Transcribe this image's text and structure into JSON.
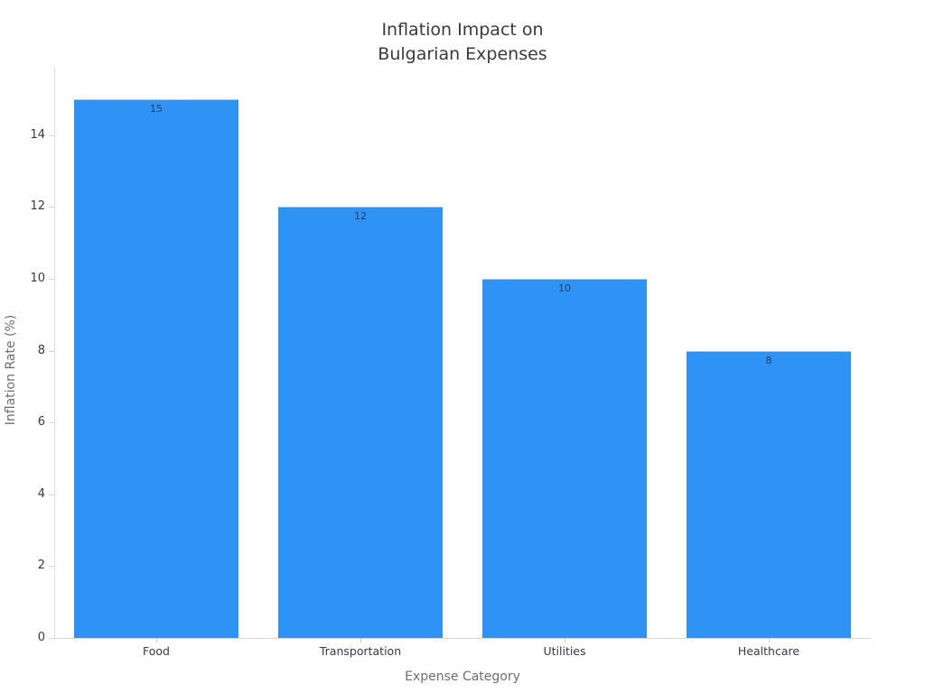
{
  "title": {
    "line1": "Inflation Impact on",
    "line2": "Bulgarian Expenses"
  },
  "chart_data": {
    "type": "bar",
    "title": "Inflation Impact on Bulgarian Expenses",
    "categories": [
      "Food",
      "Transportation",
      "Utilities",
      "Healthcare"
    ],
    "values": [
      15,
      12,
      10,
      8
    ],
    "bar_labels": [
      "15",
      "12",
      "10",
      "8"
    ],
    "bar_label_position": "inside-top",
    "xlabel": "Expense Category",
    "ylabel": "Inflation Rate (%)",
    "yticks": [
      0,
      2,
      4,
      6,
      8,
      10,
      12,
      14
    ],
    "ylim": [
      0,
      15.88
    ],
    "grid": false,
    "legend": "none",
    "colors": {
      "bar": "#2E93F5",
      "bar_label_text": "#2a3f5f",
      "tick_label": "#333b46",
      "axis_title": "#6e6e6e",
      "title_text": "#3a3a3a",
      "axis_line": "#d9d9d9",
      "background": "#ffffff"
    }
  }
}
